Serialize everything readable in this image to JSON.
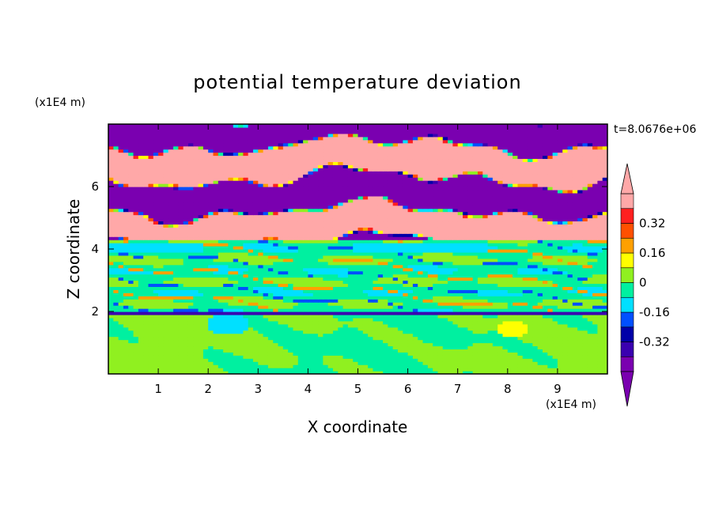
{
  "chart_data": {
    "type": "heatmap",
    "title": "potential temperature deviation",
    "xlabel": "X coordinate",
    "ylabel": "Z coordinate",
    "x_unit": "(x1E4 m)",
    "y_unit": "(x1E4 m)",
    "time_label": "t=8.0676e+06",
    "xlim": [
      0,
      10
    ],
    "ylim": [
      0,
      8
    ],
    "x_ticks": [
      1,
      2,
      3,
      4,
      5,
      6,
      7,
      8,
      9
    ],
    "y_ticks": [
      2,
      4,
      6
    ],
    "colorbar": {
      "levels": [
        -0.48,
        -0.4,
        -0.32,
        -0.24,
        -0.16,
        -0.08,
        0,
        0.08,
        0.16,
        0.24,
        0.32,
        0.4
      ],
      "colors": [
        "#7a00b0",
        "#3a00b0",
        "#0000a8",
        "#0050ff",
        "#00e0ff",
        "#00f0a0",
        "#90f020",
        "#ffff00",
        "#ffa000",
        "#ff5000",
        "#ff2020",
        "#ffa8a8"
      ],
      "tick_labels": [
        "0.32",
        "0.16",
        "0",
        "-0.16",
        "-0.32"
      ],
      "tick_values": [
        0.32,
        0.16,
        0,
        -0.16,
        -0.32
      ],
      "under_color": "#7a00b0",
      "over_color": "#ffa8a8"
    }
  }
}
